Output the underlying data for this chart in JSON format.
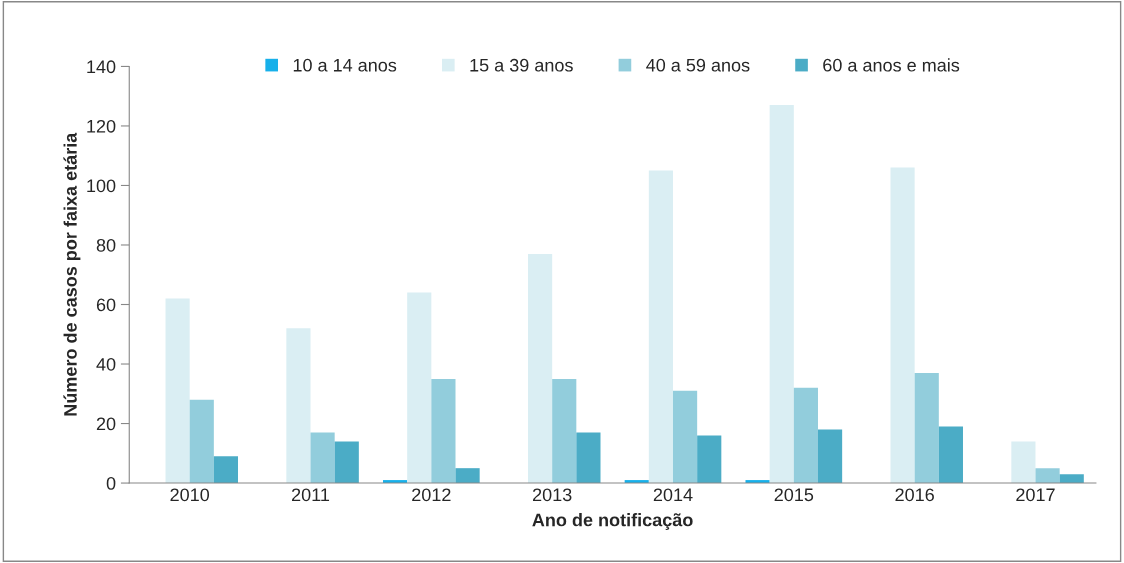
{
  "chart_data": {
    "type": "bar",
    "xlabel": "Ano de notificação",
    "ylabel": "Número de casos por faixa etária",
    "categories": [
      "2010",
      "2011",
      "2012",
      "2013",
      "2014",
      "2015",
      "2016",
      "2017"
    ],
    "series": [
      {
        "name": "10 a 14 anos",
        "color": "#17b0ea",
        "values": [
          0,
          0,
          1,
          0,
          1,
          1,
          0,
          0
        ]
      },
      {
        "name": "15 a 39 anos",
        "color": "#daeef3",
        "values": [
          62,
          52,
          64,
          77,
          105,
          127,
          106,
          14
        ]
      },
      {
        "name": "40 a 59 anos",
        "color": "#92cddc",
        "values": [
          28,
          17,
          35,
          35,
          31,
          32,
          37,
          5
        ]
      },
      {
        "name": "60 a anos e mais",
        "color": "#4bacc6",
        "values": [
          9,
          14,
          5,
          17,
          16,
          18,
          19,
          3
        ]
      }
    ],
    "ylim": [
      0,
      140
    ],
    "yticks": [
      0,
      20,
      40,
      60,
      80,
      100,
      120,
      140
    ],
    "grid": false,
    "legend": "top"
  }
}
